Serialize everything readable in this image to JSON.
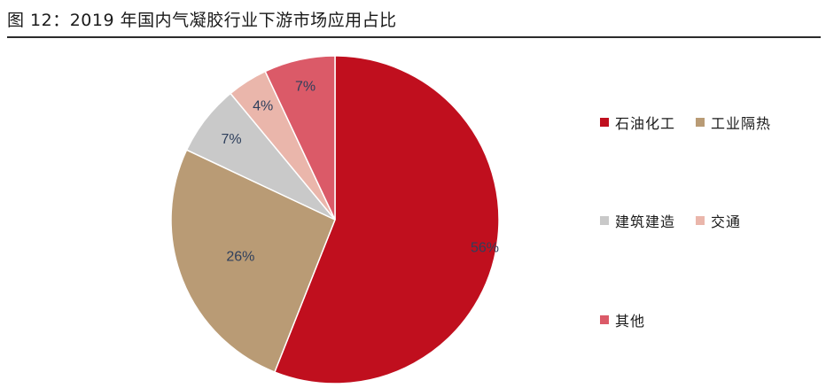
{
  "header": {
    "title": "图 12：2019 年国内气凝胶行业下游市场应用占比"
  },
  "chart_data": {
    "type": "pie",
    "title": "",
    "slices": [
      {
        "name": "石油化工",
        "value": 56,
        "label": "56%",
        "color": "#c00f1e"
      },
      {
        "name": "工业隔热",
        "value": 26,
        "label": "26%",
        "color": "#b99b75"
      },
      {
        "name": "建筑建造",
        "value": 7,
        "label": "7%",
        "color": "#c9c9c9"
      },
      {
        "name": "交通",
        "value": 4,
        "label": "4%",
        "color": "#eab6ab"
      },
      {
        "name": "其他",
        "value": 7,
        "label": "7%",
        "color": "#db5a68"
      }
    ],
    "start": "12 o'clock, clockwise",
    "legend_position": "right"
  }
}
